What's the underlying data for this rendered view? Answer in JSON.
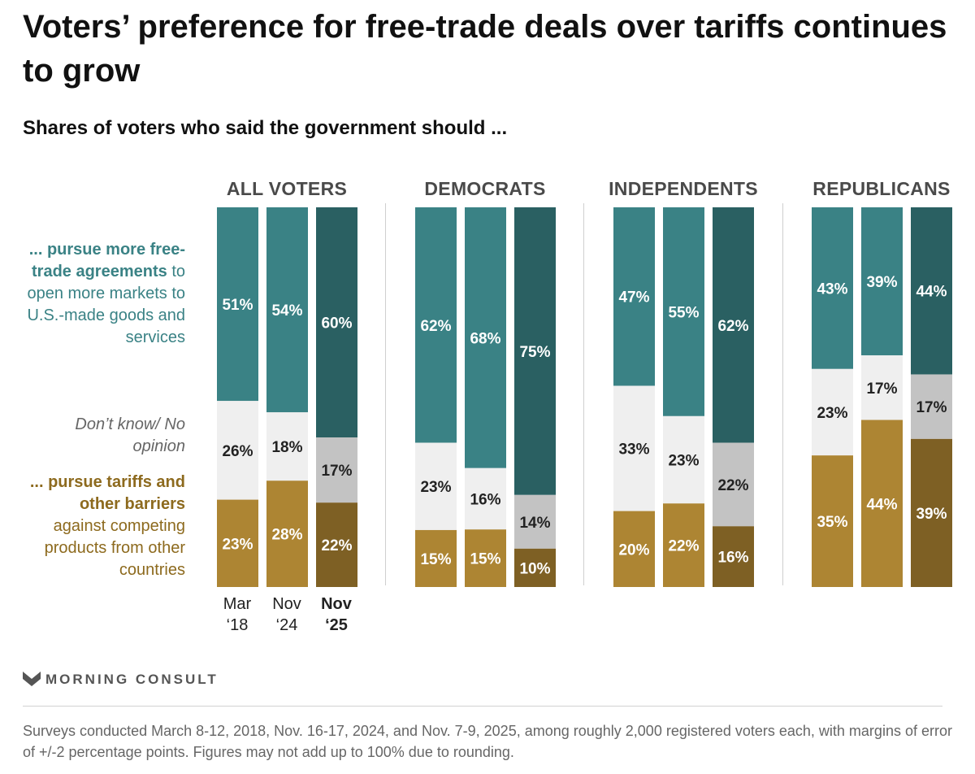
{
  "title": "Voters’ preference for free-trade deals over tariffs continues to grow",
  "subtitle": "Shares of voters who said the government should ...",
  "row_labels": {
    "free_trade_bold": "... pursue more free-trade agreements",
    "free_trade_rest": "to open more markets to U.S.-made goods and services",
    "dont_know": "Don’t know/ No opinion",
    "tariffs_bold": "... pursue tariffs and other barriers",
    "tariffs_rest": "against competing products from other countries"
  },
  "time_labels": [
    {
      "line1": "Mar",
      "line2": "‘18"
    },
    {
      "line1": "Nov",
      "line2": "‘24"
    },
    {
      "line1": "Nov",
      "line2": "‘25"
    }
  ],
  "colors": {
    "free_trade": "#3a8285",
    "free_trade_latest": "#2a6062",
    "dont_know": "#efefef",
    "dont_know_latest": "#c3c3c3",
    "tariffs": "#ad8533",
    "tariffs_latest": "#7e6024"
  },
  "chart_data": {
    "type": "bar",
    "stacked": true,
    "normalized": true,
    "unit": "%",
    "segment_order_top_to_bottom": [
      "free_trade",
      "dont_know",
      "tariffs"
    ],
    "categories": [
      "Mar ‘18",
      "Nov ‘24",
      "Nov ‘25"
    ],
    "panels": [
      {
        "name": "ALL VOTERS",
        "free_trade": [
          51,
          54,
          60
        ],
        "dont_know": [
          26,
          18,
          17
        ],
        "tariffs": [
          23,
          28,
          22
        ]
      },
      {
        "name": "DEMOCRATS",
        "free_trade": [
          62,
          68,
          75
        ],
        "dont_know": [
          23,
          16,
          14
        ],
        "tariffs": [
          15,
          15,
          10
        ]
      },
      {
        "name": "INDEPENDENTS",
        "free_trade": [
          47,
          55,
          62
        ],
        "dont_know": [
          33,
          23,
          22
        ],
        "tariffs": [
          20,
          22,
          16
        ]
      },
      {
        "name": "REPUBLICANS",
        "free_trade": [
          43,
          39,
          44
        ],
        "dont_know": [
          23,
          17,
          17
        ],
        "tariffs": [
          35,
          44,
          39
        ]
      }
    ]
  },
  "logo": {
    "wordmark": "MORNING CONSULT",
    "icon": "morning-consult-logo-icon"
  },
  "footnote": "Surveys conducted March 8-12, 2018, Nov. 16-17, 2024, and Nov. 7-9, 2025, among roughly 2,000 registered voters each, with margins of error of +/-2 percentage points. Figures may not add up to 100% due to rounding."
}
